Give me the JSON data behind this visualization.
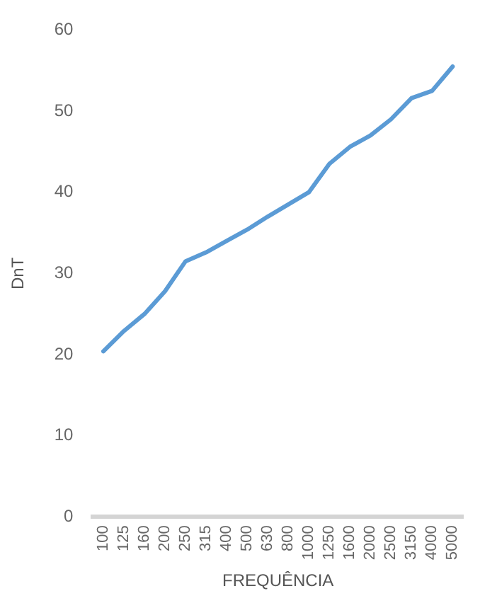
{
  "chart_data": {
    "type": "line",
    "xlabel": "FREQUÊNCIA",
    "ylabel": "DnT",
    "categories": [
      "100",
      "125",
      "160",
      "200",
      "250",
      "315",
      "400",
      "500",
      "630",
      "800",
      "1000",
      "1250",
      "1600",
      "2000",
      "2500",
      "3150",
      "4000",
      "5000"
    ],
    "series": [
      {
        "color": "#5b9bd5",
        "values": [
          20.4,
          22.9,
          25,
          27.8,
          31.5,
          32.6,
          34,
          35.4,
          37,
          38.5,
          40,
          43.5,
          45.6,
          47,
          49,
          51.6,
          52.5,
          55.5
        ]
      }
    ],
    "ylim": [
      0,
      60
    ],
    "yticks": [
      0,
      10,
      20,
      30,
      40,
      50,
      60
    ],
    "grid": false,
    "legend": false,
    "marker": "none",
    "line_style": "solid"
  }
}
